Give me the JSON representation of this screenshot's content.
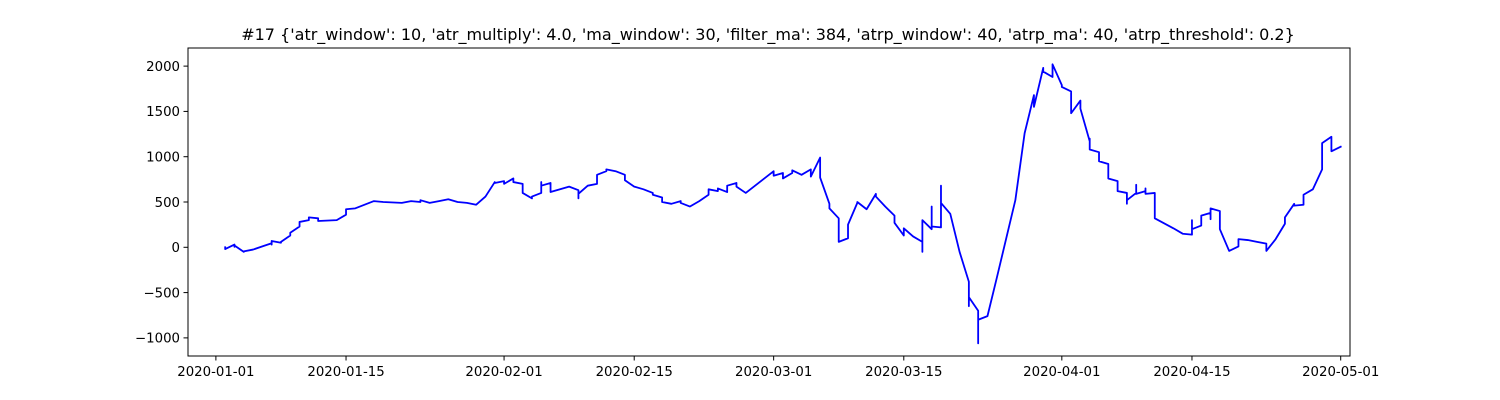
{
  "chart_data": {
    "type": "line",
    "title": "#17 {'atr_window': 10, 'atr_multiply': 4.0, 'ma_window': 30, 'filter_ma': 384, 'atrp_window': 40, 'atrp_ma': 40, 'atrp_threshold': 0.2}",
    "xlabel": "",
    "ylabel": "",
    "grid": false,
    "legend": "none",
    "xlim": [
      "2019-12-29",
      "2020-05-02"
    ],
    "ylim": [
      -1200,
      2200
    ],
    "x_ticks": [
      "2020-01-01",
      "2020-01-15",
      "2020-02-01",
      "2020-02-15",
      "2020-03-01",
      "2020-03-15",
      "2020-04-01",
      "2020-04-15",
      "2020-05-01"
    ],
    "y_ticks": [
      -1000,
      -500,
      0,
      500,
      1000,
      1500,
      2000
    ],
    "series": [
      {
        "color": "#0000ff",
        "points": [
          [
            "2020-01-02",
            0
          ],
          [
            "2020-01-02",
            -20
          ],
          [
            "2020-01-03",
            30
          ],
          [
            "2020-01-03",
            5
          ],
          [
            "2020-01-03",
            20
          ],
          [
            "2020-01-04",
            -50
          ],
          [
            "2020-01-04",
            -45
          ],
          [
            "2020-01-05",
            -25
          ],
          [
            "2020-01-06",
            10
          ],
          [
            "2020-01-07",
            45
          ],
          [
            "2020-01-07",
            30
          ],
          [
            "2020-01-07",
            70
          ],
          [
            "2020-01-08",
            50
          ],
          [
            "2020-01-08",
            60
          ],
          [
            "2020-01-09",
            130
          ],
          [
            "2020-01-09",
            160
          ],
          [
            "2020-01-10",
            230
          ],
          [
            "2020-01-10",
            280
          ],
          [
            "2020-01-11",
            300
          ],
          [
            "2020-01-11",
            330
          ],
          [
            "2020-01-12",
            320
          ],
          [
            "2020-01-12",
            290
          ],
          [
            "2020-01-14",
            300
          ],
          [
            "2020-01-15",
            360
          ],
          [
            "2020-01-15",
            420
          ],
          [
            "2020-01-16",
            430
          ],
          [
            "2020-01-17",
            470
          ],
          [
            "2020-01-18",
            510
          ],
          [
            "2020-01-19",
            500
          ],
          [
            "2020-01-21",
            490
          ],
          [
            "2020-01-22",
            510
          ],
          [
            "2020-01-23",
            500
          ],
          [
            "2020-01-23",
            520
          ],
          [
            "2020-01-24",
            490
          ],
          [
            "2020-01-25",
            510
          ],
          [
            "2020-01-26",
            530
          ],
          [
            "2020-01-27",
            500
          ],
          [
            "2020-01-28",
            490
          ],
          [
            "2020-01-29",
            470
          ],
          [
            "2020-01-30",
            560
          ],
          [
            "2020-01-31",
            720
          ],
          [
            "2020-01-31",
            710
          ],
          [
            "2020-02-01",
            730
          ],
          [
            "2020-02-01",
            700
          ],
          [
            "2020-02-02",
            760
          ],
          [
            "2020-02-02",
            720
          ],
          [
            "2020-02-03",
            700
          ],
          [
            "2020-02-03",
            600
          ],
          [
            "2020-02-04",
            540
          ],
          [
            "2020-02-04",
            560
          ],
          [
            "2020-02-05",
            600
          ],
          [
            "2020-02-05",
            720
          ],
          [
            "2020-02-05",
            680
          ],
          [
            "2020-02-06",
            710
          ],
          [
            "2020-02-06",
            610
          ],
          [
            "2020-02-08",
            670
          ],
          [
            "2020-02-09",
            630
          ],
          [
            "2020-02-09",
            540
          ],
          [
            "2020-02-09",
            590
          ],
          [
            "2020-02-10",
            680
          ],
          [
            "2020-02-11",
            700
          ],
          [
            "2020-02-11",
            800
          ],
          [
            "2020-02-12",
            840
          ],
          [
            "2020-02-12",
            860
          ],
          [
            "2020-02-13",
            840
          ],
          [
            "2020-02-14",
            800
          ],
          [
            "2020-02-14",
            740
          ],
          [
            "2020-02-15",
            670
          ],
          [
            "2020-02-16",
            640
          ],
          [
            "2020-02-17",
            600
          ],
          [
            "2020-02-17",
            580
          ],
          [
            "2020-02-18",
            550
          ],
          [
            "2020-02-18",
            500
          ],
          [
            "2020-02-19",
            480
          ],
          [
            "2020-02-20",
            510
          ],
          [
            "2020-02-20",
            490
          ],
          [
            "2020-02-21",
            450
          ],
          [
            "2020-02-22",
            510
          ],
          [
            "2020-02-23",
            580
          ],
          [
            "2020-02-23",
            640
          ],
          [
            "2020-02-24",
            620
          ],
          [
            "2020-02-24",
            650
          ],
          [
            "2020-02-25",
            610
          ],
          [
            "2020-02-25",
            680
          ],
          [
            "2020-02-26",
            710
          ],
          [
            "2020-02-26",
            670
          ],
          [
            "2020-02-27",
            600
          ],
          [
            "2020-02-28",
            680
          ],
          [
            "2020-02-29",
            760
          ],
          [
            "2020-03-01",
            840
          ],
          [
            "2020-03-01",
            790
          ],
          [
            "2020-03-02",
            820
          ],
          [
            "2020-03-02",
            760
          ],
          [
            "2020-03-03",
            820
          ],
          [
            "2020-03-03",
            850
          ],
          [
            "2020-03-04",
            800
          ],
          [
            "2020-03-05",
            860
          ],
          [
            "2020-03-05",
            840
          ],
          [
            "2020-03-05",
            780
          ],
          [
            "2020-03-06",
            990
          ],
          [
            "2020-03-06",
            930
          ],
          [
            "2020-03-06",
            800
          ],
          [
            "2020-03-06",
            770
          ],
          [
            "2020-03-07",
            480
          ],
          [
            "2020-03-07",
            430
          ],
          [
            "2020-03-08",
            320
          ],
          [
            "2020-03-08",
            140
          ],
          [
            "2020-03-08",
            60
          ],
          [
            "2020-03-09",
            100
          ],
          [
            "2020-03-09",
            180
          ],
          [
            "2020-03-09",
            250
          ],
          [
            "2020-03-10",
            490
          ],
          [
            "2020-03-10",
            500
          ],
          [
            "2020-03-11",
            420
          ],
          [
            "2020-03-12",
            590
          ],
          [
            "2020-03-12",
            560
          ],
          [
            "2020-03-13",
            450
          ],
          [
            "2020-03-14",
            350
          ],
          [
            "2020-03-14",
            270
          ],
          [
            "2020-03-15",
            130
          ],
          [
            "2020-03-15",
            210
          ],
          [
            "2020-03-16",
            120
          ],
          [
            "2020-03-17",
            60
          ],
          [
            "2020-03-17",
            -50
          ],
          [
            "2020-03-17",
            250
          ],
          [
            "2020-03-17",
            300
          ],
          [
            "2020-03-18",
            200
          ],
          [
            "2020-03-18",
            450
          ],
          [
            "2020-03-18",
            230
          ],
          [
            "2020-03-19",
            220
          ],
          [
            "2020-03-19",
            450
          ],
          [
            "2020-03-19",
            680
          ],
          [
            "2020-03-19",
            490
          ],
          [
            "2020-03-20",
            370
          ],
          [
            "2020-03-21",
            -50
          ],
          [
            "2020-03-22",
            -380
          ],
          [
            "2020-03-22",
            -500
          ],
          [
            "2020-03-22",
            -650
          ],
          [
            "2020-03-22",
            -550
          ],
          [
            "2020-03-23",
            -700
          ],
          [
            "2020-03-23",
            -1060
          ],
          [
            "2020-03-23",
            -800
          ],
          [
            "2020-03-24",
            -760
          ],
          [
            "2020-03-25",
            -340
          ],
          [
            "2020-03-27",
            520
          ],
          [
            "2020-03-28",
            1260
          ],
          [
            "2020-03-29",
            1680
          ],
          [
            "2020-03-29",
            1550
          ],
          [
            "2020-03-30",
            1980
          ],
          [
            "2020-03-30",
            1940
          ],
          [
            "2020-03-31",
            1880
          ],
          [
            "2020-03-31",
            1950
          ],
          [
            "2020-03-31",
            2020
          ],
          [
            "2020-04-01",
            1790
          ],
          [
            "2020-04-01",
            1770
          ],
          [
            "2020-04-02",
            1720
          ],
          [
            "2020-04-02",
            1480
          ],
          [
            "2020-04-03",
            1620
          ],
          [
            "2020-04-03",
            1530
          ],
          [
            "2020-04-04",
            1170
          ],
          [
            "2020-04-04",
            1200
          ],
          [
            "2020-04-04",
            1080
          ],
          [
            "2020-04-05",
            1050
          ],
          [
            "2020-04-05",
            950
          ],
          [
            "2020-04-06",
            920
          ],
          [
            "2020-04-06",
            890
          ],
          [
            "2020-04-06",
            760
          ],
          [
            "2020-04-07",
            730
          ],
          [
            "2020-04-07",
            620
          ],
          [
            "2020-04-08",
            600
          ],
          [
            "2020-04-08",
            480
          ],
          [
            "2020-04-08",
            520
          ],
          [
            "2020-04-09",
            600
          ],
          [
            "2020-04-09",
            690
          ],
          [
            "2020-04-09",
            590
          ],
          [
            "2020-04-10",
            620
          ],
          [
            "2020-04-10",
            650
          ],
          [
            "2020-04-10",
            590
          ],
          [
            "2020-04-11",
            600
          ],
          [
            "2020-04-11",
            430
          ],
          [
            "2020-04-11",
            320
          ],
          [
            "2020-04-13",
            210
          ],
          [
            "2020-04-14",
            150
          ],
          [
            "2020-04-15",
            140
          ],
          [
            "2020-04-15",
            300
          ],
          [
            "2020-04-15",
            200
          ],
          [
            "2020-04-16",
            240
          ],
          [
            "2020-04-16",
            350
          ],
          [
            "2020-04-17",
            380
          ],
          [
            "2020-04-17",
            310
          ],
          [
            "2020-04-17",
            430
          ],
          [
            "2020-04-18",
            400
          ],
          [
            "2020-04-18",
            330
          ],
          [
            "2020-04-18",
            200
          ],
          [
            "2020-04-19",
            -40
          ],
          [
            "2020-04-20",
            10
          ],
          [
            "2020-04-20",
            90
          ],
          [
            "2020-04-21",
            80
          ],
          [
            "2020-04-22",
            60
          ],
          [
            "2020-04-23",
            40
          ],
          [
            "2020-04-23",
            -40
          ],
          [
            "2020-04-24",
            90
          ],
          [
            "2020-04-25",
            260
          ],
          [
            "2020-04-25",
            330
          ],
          [
            "2020-04-26",
            480
          ],
          [
            "2020-04-26",
            460
          ],
          [
            "2020-04-27",
            470
          ],
          [
            "2020-04-27",
            580
          ],
          [
            "2020-04-28",
            640
          ],
          [
            "2020-04-29",
            860
          ],
          [
            "2020-04-29",
            870
          ],
          [
            "2020-04-29",
            1150
          ],
          [
            "2020-04-30",
            1220
          ],
          [
            "2020-04-30",
            1150
          ],
          [
            "2020-04-30",
            1060
          ],
          [
            "2020-05-01",
            1110
          ]
        ]
      }
    ]
  }
}
